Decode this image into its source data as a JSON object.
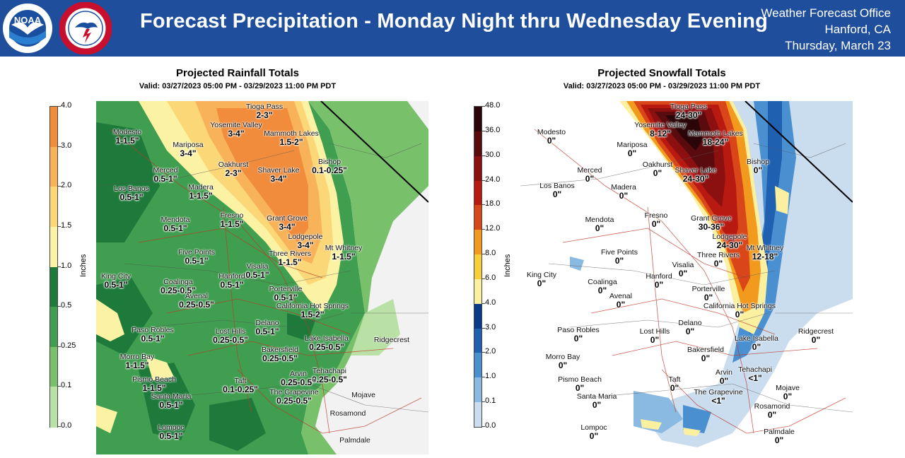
{
  "header": {
    "title": "Forecast Precipitation - Monday Night thru Wednesday Evening",
    "office_line1": "Weather Forecast Office",
    "office_line2": "Hanford, CA",
    "office_line3": "Thursday, March 23",
    "logos": [
      "noaa-logo",
      "nws-logo"
    ]
  },
  "rainfall": {
    "title": "Projected Rainfall Totals",
    "valid": "Valid: 03/27/2023 05:00 PM - 03/29/2023 11:00 PM PDT",
    "colorbar_label": "Inches",
    "colorbar": [
      {
        "label": "4.0",
        "color": "#f08c3c"
      },
      {
        "label": "3.0",
        "color": "#f8b25a"
      },
      {
        "label": "2.0",
        "color": "#fbd777"
      },
      {
        "label": "1.5",
        "color": "#fbf3a3"
      },
      {
        "label": "1.0",
        "color": "#1e7a3a"
      },
      {
        "label": "0.5",
        "color": "#3f9e4f"
      },
      {
        "label": "0.25",
        "color": "#78c06a"
      },
      {
        "label": "0.1",
        "color": "#b9e0a5"
      },
      {
        "label": "0.0",
        "color": "#f2f2f2"
      }
    ],
    "locations": [
      {
        "name": "Tioga Pass",
        "value": "2-3\""
      },
      {
        "name": "Yosemite Valley",
        "value": "3-4\""
      },
      {
        "name": "Mammoth Lakes",
        "value": "1.5-2\""
      },
      {
        "name": "Modesto",
        "value": "1-1.5\""
      },
      {
        "name": "Mariposa",
        "value": "3-4\""
      },
      {
        "name": "Bishop",
        "value": "0.1-0.25\""
      },
      {
        "name": "Oakhurst",
        "value": "2-3\""
      },
      {
        "name": "Shaver Lake",
        "value": "3-4\""
      },
      {
        "name": "Merced",
        "value": "0.5-1\""
      },
      {
        "name": "Los Banos",
        "value": "0.5-1\""
      },
      {
        "name": "Madera",
        "value": "1-1.5\""
      },
      {
        "name": "Fresno",
        "value": "1-1.5\""
      },
      {
        "name": "Mendota",
        "value": "0.5-1\""
      },
      {
        "name": "Grant Grove",
        "value": "3-4\""
      },
      {
        "name": "Lodgepole",
        "value": "3-4\""
      },
      {
        "name": "Five Points",
        "value": "0.5-1\""
      },
      {
        "name": "Mt Whitney",
        "value": "1-1.5\""
      },
      {
        "name": "Three Rivers",
        "value": "1-1.5\""
      },
      {
        "name": "Visalia",
        "value": "0.5-1\""
      },
      {
        "name": "King City",
        "value": "0.5-1\""
      },
      {
        "name": "Hanford",
        "value": "0.5-1\""
      },
      {
        "name": "Coalinga",
        "value": "0.25-0.5\""
      },
      {
        "name": "Avenal",
        "value": "0.25-0.5\""
      },
      {
        "name": "Porterville",
        "value": "0.5-1\""
      },
      {
        "name": "California Hot Springs",
        "value": "1.5-2\""
      },
      {
        "name": "Delano",
        "value": "0.5-1\""
      },
      {
        "name": "Paso Robles",
        "value": "0.5-1\""
      },
      {
        "name": "Lost Hills",
        "value": "0.25-0.5\""
      },
      {
        "name": "Lake Isabella",
        "value": "0.25-0.5\""
      },
      {
        "name": "Ridgecrest",
        "value": ""
      },
      {
        "name": "Bakersfield",
        "value": "0.25-0.5\""
      },
      {
        "name": "Morro Bay",
        "value": "1-1.5\""
      },
      {
        "name": "Tehachapi",
        "value": "0.25-0.5\""
      },
      {
        "name": "Arvin",
        "value": "0.25-0.5\""
      },
      {
        "name": "Pismo Beach",
        "value": "1-1.5\""
      },
      {
        "name": "Taft",
        "value": "0.1-0.25\""
      },
      {
        "name": "The Grapevine",
        "value": "0.25-0.5\""
      },
      {
        "name": "Santa Maria",
        "value": "0.5-1\""
      },
      {
        "name": "Mojave",
        "value": ""
      },
      {
        "name": "Rosamond",
        "value": ""
      },
      {
        "name": "Lompoc",
        "value": "0.5-1\""
      },
      {
        "name": "Palmdale",
        "value": ""
      }
    ]
  },
  "snowfall": {
    "title": "Projected Snowfall Totals",
    "valid": "Valid: 03/27/2023 05:00 PM - 03/29/2023 11:00 PM PDT",
    "colorbar_label": "Inches",
    "colorbar": [
      {
        "label": "48.0",
        "color": "#2a0608"
      },
      {
        "label": "36.0",
        "color": "#5a0b0e"
      },
      {
        "label": "30.0",
        "color": "#8c1010"
      },
      {
        "label": "24.0",
        "color": "#b81a12"
      },
      {
        "label": "18.0",
        "color": "#d8461a"
      },
      {
        "label": "12.0",
        "color": "#f29a1e"
      },
      {
        "label": "8.0",
        "color": "#f7cf3a"
      },
      {
        "label": "6.0",
        "color": "#fbf0a0"
      },
      {
        "label": "4.0",
        "color": "#0a3a8a"
      },
      {
        "label": "3.0",
        "color": "#1f60b0"
      },
      {
        "label": "2.0",
        "color": "#4a8fcf"
      },
      {
        "label": "1.0",
        "color": "#8ab9e2"
      },
      {
        "label": "0.1",
        "color": "#c9ddef"
      },
      {
        "label": "0.0",
        "color": "#ffffff"
      }
    ],
    "locations": [
      {
        "name": "Tioga Pass",
        "value": "24-30\""
      },
      {
        "name": "Yosemite Valley",
        "value": "8-12\""
      },
      {
        "name": "Mammoth Lakes",
        "value": "18-24\""
      },
      {
        "name": "Modesto",
        "value": "0\""
      },
      {
        "name": "Mariposa",
        "value": "0\""
      },
      {
        "name": "Bishop",
        "value": "0\""
      },
      {
        "name": "Oakhurst",
        "value": "0\""
      },
      {
        "name": "Shaver Lake",
        "value": "24-30\""
      },
      {
        "name": "Merced",
        "value": "0\""
      },
      {
        "name": "Los Banos",
        "value": "0\""
      },
      {
        "name": "Madera",
        "value": "0\""
      },
      {
        "name": "Fresno",
        "value": "0\""
      },
      {
        "name": "Mendota",
        "value": "0\""
      },
      {
        "name": "Grant Grove",
        "value": "30-36\""
      },
      {
        "name": "Lodgepole",
        "value": "24-30\""
      },
      {
        "name": "Five Points",
        "value": "0\""
      },
      {
        "name": "Mt Whitney",
        "value": "12-18\""
      },
      {
        "name": "Three Rivers",
        "value": "0\""
      },
      {
        "name": "Visalia",
        "value": "0\""
      },
      {
        "name": "King City",
        "value": "0\""
      },
      {
        "name": "Hanford",
        "value": "0\""
      },
      {
        "name": "Coalinga",
        "value": "0\""
      },
      {
        "name": "Avenal",
        "value": "0\""
      },
      {
        "name": "Porterville",
        "value": "0\""
      },
      {
        "name": "California Hot Springs",
        "value": "0\""
      },
      {
        "name": "Delano",
        "value": "0\""
      },
      {
        "name": "Paso Robles",
        "value": "0\""
      },
      {
        "name": "Lost Hills",
        "value": "0\""
      },
      {
        "name": "Lake Isabella",
        "value": "0\""
      },
      {
        "name": "Ridgecrest",
        "value": "0\""
      },
      {
        "name": "Bakersfield",
        "value": "0\""
      },
      {
        "name": "Morro Bay",
        "value": "0\""
      },
      {
        "name": "Tehachapi",
        "value": "<1\""
      },
      {
        "name": "Arvin",
        "value": "0\""
      },
      {
        "name": "Pismo Beach",
        "value": "0\""
      },
      {
        "name": "Taft",
        "value": "0\""
      },
      {
        "name": "The Grapevine",
        "value": "<1\""
      },
      {
        "name": "Santa Maria",
        "value": "0\""
      },
      {
        "name": "Mojave",
        "value": "0\""
      },
      {
        "name": "Rosamond",
        "value": "0\""
      },
      {
        "name": "Lompoc",
        "value": "0\""
      },
      {
        "name": "Palmdale",
        "value": "0\""
      }
    ]
  }
}
